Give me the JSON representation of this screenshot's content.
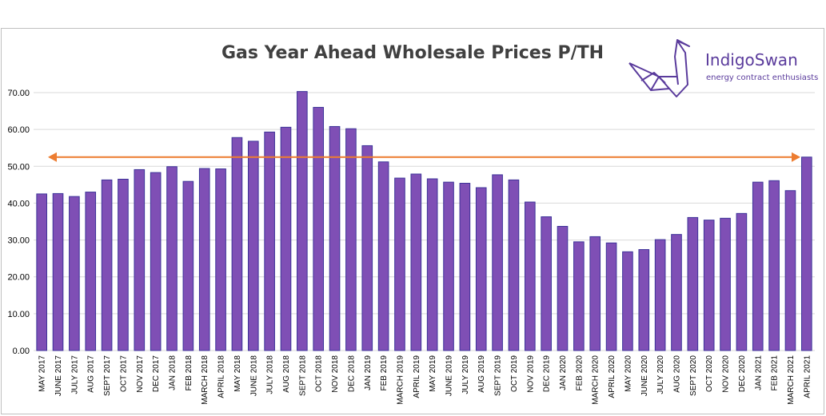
{
  "chart_data": {
    "type": "bar",
    "title": "Gas Year Ahead Wholesale Prices P/TH",
    "xlabel": "",
    "ylabel": "",
    "ylim": [
      0,
      70
    ],
    "yticks": [
      "0.00",
      "10.00",
      "20.00",
      "30.00",
      "40.00",
      "50.00",
      "60.00",
      "70.00"
    ],
    "grid": true,
    "bar_color": "#7f4fb5",
    "bar_edge_color": "#3d3399",
    "reference_line": {
      "value": 52.5,
      "color": "#ed7d31",
      "style": "double-arrow"
    },
    "categories": [
      "MAY 2017",
      "JUNE 2017",
      "JULY 2017",
      "AUG 2017",
      "SEPT 2017",
      "OCT 2017",
      "NOV 2017",
      "DEC 2017",
      "JAN 2018",
      "FEB 2018",
      "MARCH 2018",
      "APRIL 2018",
      "MAY 2018",
      "JUNE 2018",
      "JULY 2018",
      "AUG 2018",
      "SEPT 2018",
      "OCT 2018",
      "NOV 2018",
      "DEC 2018",
      "JAN 2019",
      "FEB 2019",
      "MARCH 2019",
      "APRIL 2019",
      "MAY 2019",
      "JUNE 2019",
      "JULY 2019",
      "AUG 2019",
      "SEPT 2019",
      "OCT 2019",
      "NOV 2019",
      "DEC 2019",
      "JAN 2020",
      "FEB 2020",
      "MARCH 2020",
      "APRIL 2020",
      "MAY 2020",
      "JUNE 2020",
      "JULY 2020",
      "AUG 2020",
      "SEPT 2020",
      "OCT 2020",
      "NOV 2020",
      "DEC 2020",
      "JAN 2021",
      "FEB 2021",
      "MARCH 2021",
      "APRIL 2021"
    ],
    "values": [
      42.5,
      42.6,
      41.8,
      43.0,
      46.3,
      46.5,
      49.1,
      48.3,
      49.9,
      45.9,
      49.4,
      49.3,
      57.8,
      56.8,
      59.3,
      60.6,
      70.3,
      66.0,
      60.8,
      60.2,
      55.6,
      51.2,
      46.8,
      47.9,
      46.6,
      45.7,
      45.4,
      44.2,
      47.7,
      46.3,
      40.3,
      36.3,
      33.7,
      29.5,
      30.9,
      29.2,
      26.8,
      27.4,
      30.1,
      31.5,
      36.1,
      35.4,
      35.9,
      37.2,
      45.7,
      46.1,
      43.4,
      52.5
    ]
  },
  "logo": {
    "name": "IndigoSwan",
    "tagline": "energy contract enthusiasts",
    "color": "#5a3b9c"
  }
}
